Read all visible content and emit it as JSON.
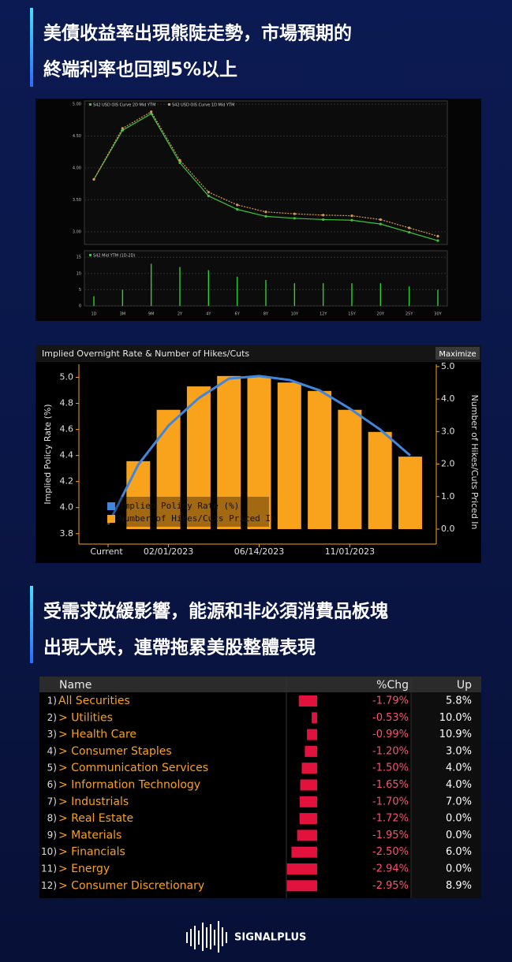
{
  "headline_1": [
    "美債收益率出現熊陡走勢，市場預期的",
    "終端利率也回到5%以上"
  ],
  "chart_data": [
    {
      "type": "line",
      "categories": [
        "1D",
        "3M",
        "9M",
        "2Y",
        "4Y",
        "6Y",
        "8Y",
        "10Y",
        "12Y",
        "15Y",
        "20Y",
        "25Y",
        "30Y"
      ],
      "series": [
        {
          "name": "S42 USD OIS Curve 2D Mid YTM",
          "type": "line",
          "color": "#3cc43c",
          "values": [
            3.82,
            4.59,
            4.85,
            4.08,
            3.56,
            3.35,
            3.24,
            3.21,
            3.19,
            3.18,
            3.12,
            2.99,
            2.86
          ]
        },
        {
          "name": "S42 USD OIS Curve 1D Mid YTM",
          "type": "line",
          "color": "#d89a55",
          "values": [
            3.82,
            4.62,
            4.88,
            4.12,
            3.62,
            3.42,
            3.31,
            3.28,
            3.26,
            3.25,
            3.19,
            3.06,
            2.93
          ]
        },
        {
          "name": "S42 Mid YTM (1D-2D)",
          "type": "bar",
          "axis": "y2",
          "color": "#2fcf2f",
          "values": [
            3,
            5,
            13,
            12,
            11,
            9,
            8,
            7,
            7,
            7,
            7,
            6,
            5
          ]
        }
      ],
      "ylim": [
        2.8,
        5.05
      ],
      "yticks": [
        {
          "value": 3,
          "label": "3.00"
        },
        {
          "value": 3.5,
          "label": "3.50"
        },
        {
          "value": 4,
          "label": "4.00"
        },
        {
          "value": 4.5,
          "label": "4.50"
        },
        {
          "value": 5,
          "label": "5.00"
        }
      ],
      "y2lim": [
        0,
        17
      ],
      "y2ticks": [
        0,
        5,
        10,
        15
      ],
      "grid": true
    },
    {
      "type": "combo",
      "title": "Implied Overnight Rate & Number of Hikes/Cuts",
      "button": "Maximize",
      "y_label": "Implied Policy Rate (%)",
      "y2_label": "Number of Hikes/Cuts Priced In",
      "categories": [
        "Current",
        null,
        "02/01/2023",
        null,
        null,
        "06/14/2023",
        null,
        null,
        "11/01/2023",
        null,
        null
      ],
      "series": [
        {
          "name": "Implied Policy Rate (%)",
          "type": "line",
          "color": "#3f86dc",
          "values": [
            3.87,
            4.33,
            4.63,
            4.84,
            4.99,
            5.01,
            4.98,
            4.9,
            4.76,
            4.6,
            4.4
          ]
        },
        {
          "name": "Number of Hikes/Cuts Priced In",
          "type": "bar",
          "axis": "y2",
          "color": "#f9a21c",
          "values": [
            null,
            2.09,
            3.67,
            4.39,
            4.71,
            4.68,
            4.51,
            4.25,
            3.67,
            2.99,
            2.23
          ]
        }
      ],
      "ylim": [
        3.72,
        5.1
      ],
      "yticks": [
        3.8,
        {
          "value": 4,
          "label": "4.0"
        },
        4.2,
        4.4,
        4.6,
        4.8,
        {
          "value": 5,
          "label": "5.0"
        }
      ],
      "y2lim": [
        -0.46,
        5.07
      ],
      "y2ticks": [
        {
          "value": 0,
          "label": "0.0"
        },
        {
          "value": 1,
          "label": "1.0"
        },
        {
          "value": 2,
          "label": "2.0"
        },
        {
          "value": 3,
          "label": "3.0"
        },
        {
          "value": 4,
          "label": "4.0"
        },
        {
          "value": 5,
          "label": "5.0"
        }
      ],
      "legend": "lower left",
      "grid": false
    }
  ],
  "headline_2": [
    "受需求放緩影響，能源和非必須消費品板塊",
    "出現大跌，連帶拖累美股整體表現"
  ],
  "table": {
    "columns": [
      "Name",
      "%Chg",
      "Up"
    ],
    "rows": [
      {
        "no": "1)",
        "name": "All Securities",
        "chg": -1.79,
        "chg_label": "-1.79%",
        "up": "5.8%"
      },
      {
        "no": "2)",
        "name": "> Utilities",
        "chg": -0.53,
        "chg_label": "-0.53%",
        "up": "10.0%"
      },
      {
        "no": "3)",
        "name": "> Health Care",
        "chg": -0.99,
        "chg_label": "-0.99%",
        "up": "10.9%"
      },
      {
        "no": "4)",
        "name": "> Consumer Staples",
        "chg": -1.2,
        "chg_label": "-1.20%",
        "up": "3.0%"
      },
      {
        "no": "5)",
        "name": "> Communication Services",
        "chg": -1.5,
        "chg_label": "-1.50%",
        "up": "4.0%"
      },
      {
        "no": "6)",
        "name": "> Information Technology",
        "chg": -1.65,
        "chg_label": "-1.65%",
        "up": "4.0%"
      },
      {
        "no": "7)",
        "name": "> Industrials",
        "chg": -1.7,
        "chg_label": "-1.70%",
        "up": "7.0%"
      },
      {
        "no": "8)",
        "name": "> Real Estate",
        "chg": -1.72,
        "chg_label": "-1.72%",
        "up": "0.0%"
      },
      {
        "no": "9)",
        "name": "> Materials",
        "chg": -1.95,
        "chg_label": "-1.95%",
        "up": "0.0%"
      },
      {
        "no": "10)",
        "name": "> Financials",
        "chg": -2.5,
        "chg_label": "-2.50%",
        "up": "6.0%"
      },
      {
        "no": "11)",
        "name": "> Energy",
        "chg": -2.94,
        "chg_label": "-2.94%",
        "up": "0.0%"
      },
      {
        "no": "12)",
        "name": "> Consumer Discretionary",
        "chg": -2.95,
        "chg_label": "-2.95%",
        "up": "8.9%"
      }
    ]
  },
  "footer": "SIGNALPLUS"
}
